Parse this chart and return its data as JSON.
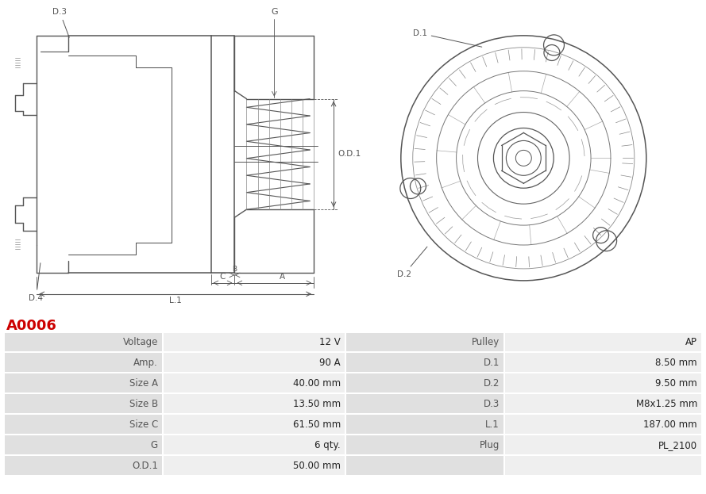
{
  "title": "A0006",
  "title_color": "#cc0000",
  "background_color": "#ffffff",
  "table_row_bg_label": "#e0e0e0",
  "table_row_bg_value": "#efefef",
  "table_border_color": "#ffffff",
  "rows": [
    [
      "Voltage",
      "12 V",
      "Pulley",
      "AP"
    ],
    [
      "Amp.",
      "90 A",
      "D.1",
      "8.50 mm"
    ],
    [
      "Size A",
      "40.00 mm",
      "D.2",
      "9.50 mm"
    ],
    [
      "Size B",
      "13.50 mm",
      "D.3",
      "M8x1.25 mm"
    ],
    [
      "Size C",
      "61.50 mm",
      "L.1",
      "187.00 mm"
    ],
    [
      "G",
      "6 qty.",
      "Plug",
      "PL_2100"
    ],
    [
      "O.D.1",
      "50.00 mm",
      "",
      ""
    ]
  ],
  "font_size_title": 13,
  "font_size_table": 8.5,
  "label_color": "#555555",
  "value_color": "#222222",
  "line_color": "#555555",
  "dim_color": "#555555"
}
